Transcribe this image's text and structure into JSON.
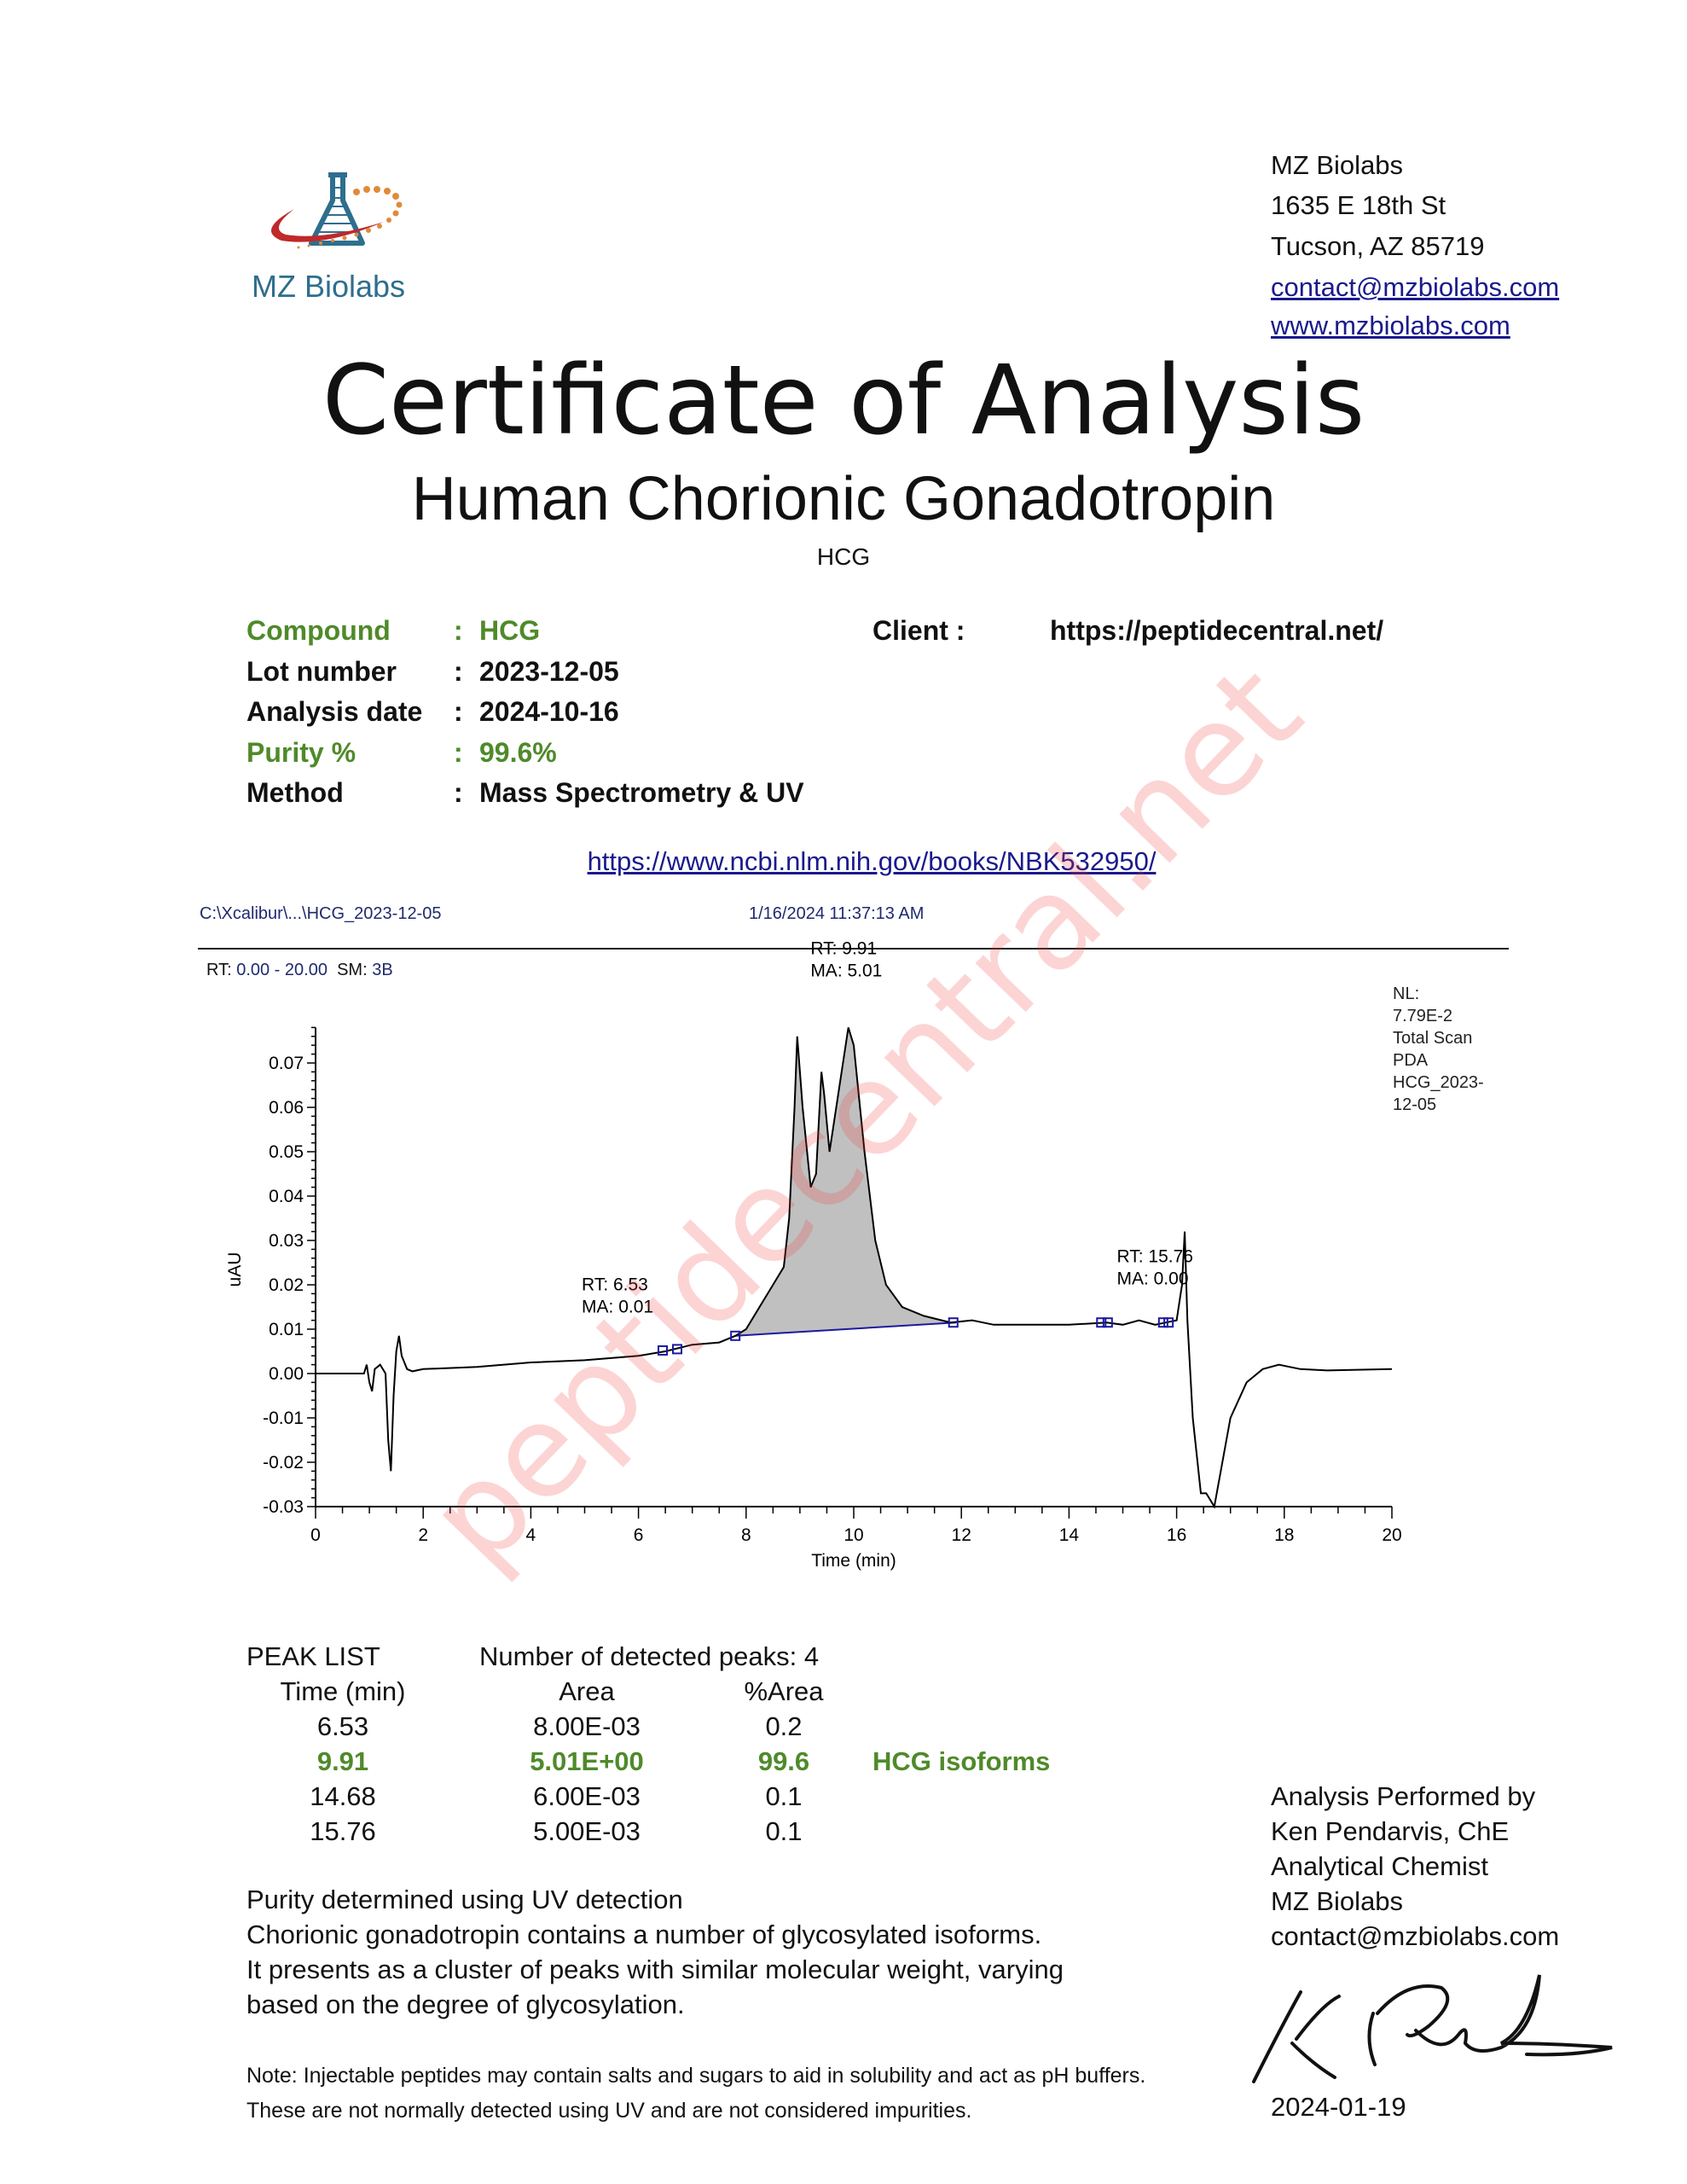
{
  "logo": {
    "text": "MZ Biolabs"
  },
  "address": {
    "name": "MZ Biolabs",
    "street": "1635 E 18th St",
    "city": "Tucson, AZ 85719",
    "email": "contact@mzbiolabs.com",
    "website": "www.mzbiolabs.com"
  },
  "title": "Certificate of Analysis",
  "subtitle": "Human Chorionic Gonadotropin",
  "code": "HCG",
  "info": [
    {
      "label": "Compound",
      "value": "HCG",
      "highlight": true
    },
    {
      "label": "Lot number",
      "value": "2023-12-05",
      "highlight": false
    },
    {
      "label": "Analysis date",
      "value": "2024-10-16",
      "highlight": false
    },
    {
      "label": "Purity %",
      "value": "99.6%",
      "highlight": true
    },
    {
      "label": "Method",
      "value": "Mass Spectrometry & UV",
      "highlight": false
    }
  ],
  "colon": ":",
  "client": {
    "label": "Client :",
    "value": "https://peptidecentral.net/"
  },
  "reference_link": "https://www.ncbi.nlm.nih.gov/books/NBK532950/",
  "chromatogram": {
    "file_path": "C:\\Xcalibur\\...\\HCG_2023-12-05",
    "timestamp": "1/16/2024 11:37:13 AM",
    "range_prefix": "RT:",
    "range": "0.00 - 20.00",
    "sm_prefix": "SM:",
    "sm": "3B",
    "nl_lines": [
      "NL:",
      "7.79E-2",
      "Total Scan",
      "PDA",
      "HCG_2023-",
      "12-05"
    ]
  },
  "chart_data": {
    "type": "line",
    "xlabel": "Time (min)",
    "ylabel": "uAU",
    "xlim": [
      0,
      20
    ],
    "ylim": [
      -0.03,
      0.078
    ],
    "xticks": [
      "0",
      "2",
      "4",
      "6",
      "8",
      "10",
      "12",
      "14",
      "16",
      "18",
      "20"
    ],
    "yticks": [
      "-0.03",
      "-0.02",
      "-0.01",
      "0.00",
      "0.01",
      "0.02",
      "0.03",
      "0.04",
      "0.05",
      "0.06",
      "0.07"
    ],
    "grid": false,
    "x": [
      0,
      0.9,
      0.95,
      1.0,
      1.05,
      1.1,
      1.2,
      1.3,
      1.35,
      1.4,
      1.45,
      1.5,
      1.55,
      1.6,
      1.7,
      1.8,
      2,
      3,
      4,
      5,
      6,
      6.5,
      7,
      7.5,
      7.8,
      8,
      8.2,
      8.5,
      8.7,
      8.8,
      8.9,
      8.95,
      9.05,
      9.2,
      9.3,
      9.4,
      9.45,
      9.55,
      9.7,
      9.9,
      10.0,
      10.2,
      10.4,
      10.6,
      10.9,
      11.3,
      11.8,
      12.2,
      12.6,
      13,
      14,
      14.7,
      15,
      15.3,
      15.6,
      15.8,
      16.0,
      16.1,
      16.15,
      16.2,
      16.3,
      16.45,
      16.55,
      16.7,
      16.85,
      17.0,
      17.3,
      17.6,
      17.9,
      18.3,
      18.8,
      20
    ],
    "y": [
      0,
      0,
      0.002,
      -0.002,
      -0.004,
      0.001,
      0.002,
      0,
      -0.015,
      -0.022,
      -0.005,
      0.005,
      0.0085,
      0.004,
      0.001,
      0.0005,
      0.001,
      0.0015,
      0.0025,
      0.003,
      0.004,
      0.005,
      0.0065,
      0.007,
      0.0085,
      0.01,
      0.014,
      0.02,
      0.024,
      0.035,
      0.06,
      0.076,
      0.06,
      0.042,
      0.045,
      0.068,
      0.063,
      0.05,
      0.062,
      0.078,
      0.074,
      0.05,
      0.03,
      0.02,
      0.015,
      0.013,
      0.0115,
      0.012,
      0.011,
      0.011,
      0.011,
      0.0115,
      0.011,
      0.012,
      0.011,
      0.0115,
      0.012,
      0.02,
      0.032,
      0.012,
      -0.01,
      -0.027,
      -0.027,
      -0.03,
      -0.02,
      -0.01,
      -0.002,
      0.001,
      0.002,
      0.001,
      0.0007,
      0.001
    ],
    "filled_peak": {
      "start": 7.8,
      "end": 11.9,
      "baseline_start": 0.0085,
      "baseline_end": 0.0115
    },
    "markers": [
      [
        6.45,
        0.0052
      ],
      [
        6.72,
        0.0055
      ],
      [
        7.8,
        0.0085
      ],
      [
        11.85,
        0.0115
      ],
      [
        14.6,
        0.0115
      ],
      [
        14.72,
        0.0115
      ],
      [
        15.75,
        0.0115
      ],
      [
        15.85,
        0.0115
      ]
    ],
    "annotations": [
      {
        "rt": "RT: 9.91",
        "ma": "MA: 5.01",
        "x": 9.91,
        "y": 0.078
      },
      {
        "rt": "RT: 6.53",
        "ma": "MA: 0.01",
        "x": 6.53,
        "y": 0.0055
      },
      {
        "rt": "RT: 15.76",
        "ma": "MA: 0.00",
        "x": 15.76,
        "y": 0.012
      }
    ],
    "colors": {
      "trace": "#000000",
      "fill": "#c0c0c0",
      "baseline": "#1a1aa0",
      "markers": "#1a1aa0"
    }
  },
  "peak_list": {
    "title": "PEAK LIST",
    "count_label": "Number of detected peaks: 4",
    "headers": [
      "Time (min)",
      "Area",
      "%Area"
    ],
    "rows": [
      {
        "time": "6.53",
        "area": "8.00E-03",
        "pct": "0.2",
        "label": "",
        "highlight": false
      },
      {
        "time": "9.91",
        "area": "5.01E+00",
        "pct": "99.6",
        "label": "HCG isoforms",
        "highlight": true
      },
      {
        "time": "14.68",
        "area": "6.00E-03",
        "pct": "0.1",
        "label": "",
        "highlight": false
      },
      {
        "time": "15.76",
        "area": "5.00E-03",
        "pct": "0.1",
        "label": "",
        "highlight": false
      }
    ]
  },
  "description": [
    "Purity determined using UV detection",
    "Chorionic gonadotropin contains a number of glycosylated isoforms.",
    "It presents as a cluster of peaks with similar molecular weight, varying",
    "based on the degree of glycosylation."
  ],
  "note": [
    "Note: Injectable peptides may contain salts and sugars to aid in solubility and act as pH buffers.",
    "These are not normally detected using UV and are not considered impurities."
  ],
  "analyst": [
    "Analysis Performed by",
    "Ken Pendarvis, ChE",
    "Analytical Chemist",
    "MZ Biolabs",
    "contact@mzbiolabs.com"
  ],
  "signature_date": "2024-01-19",
  "watermark": "peptidecentral.net",
  "colors": {
    "green": "#4f8a2a",
    "link": "#1a1a8c",
    "logo_blue": "#2e6e8e",
    "logo_red": "#c0282a",
    "logo_orange": "#e08a3a",
    "watermark": "#f03c3c"
  }
}
